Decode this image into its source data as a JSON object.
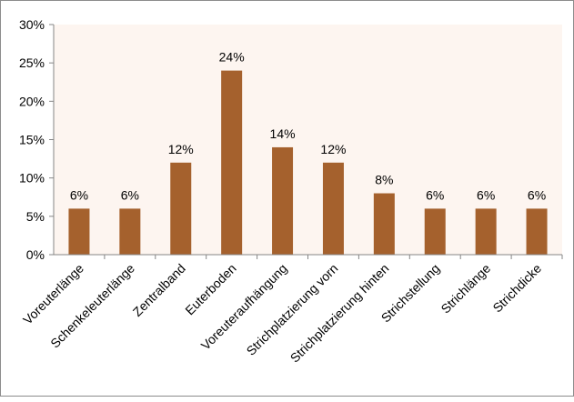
{
  "chart_data": {
    "type": "bar",
    "title": "",
    "xlabel": "",
    "ylabel": "",
    "categories": [
      "Voreuterlänge",
      "Schenkeleuterlänge",
      "Zentralband",
      "Euterboden",
      "Voreuteraufhängung",
      "Strichplatzierung vorn",
      "Strichplatzierung hinten",
      "Strichstellung",
      "Strichlänge",
      "Strichdicke"
    ],
    "values": [
      6,
      6,
      12,
      24,
      14,
      12,
      8,
      6,
      6,
      6
    ],
    "data_labels": [
      "6%",
      "6%",
      "12%",
      "24%",
      "14%",
      "12%",
      "8%",
      "6%",
      "6%",
      "6%"
    ],
    "ylim": [
      0,
      30
    ],
    "yticks": [
      0,
      5,
      10,
      15,
      20,
      25,
      30
    ],
    "ytick_labels": [
      "0%",
      "5%",
      "10%",
      "15%",
      "20%",
      "25%",
      "30%"
    ],
    "grid": false,
    "legend": "none",
    "bar_color": "#A5612D",
    "plot_background": "#FDF5F0"
  }
}
